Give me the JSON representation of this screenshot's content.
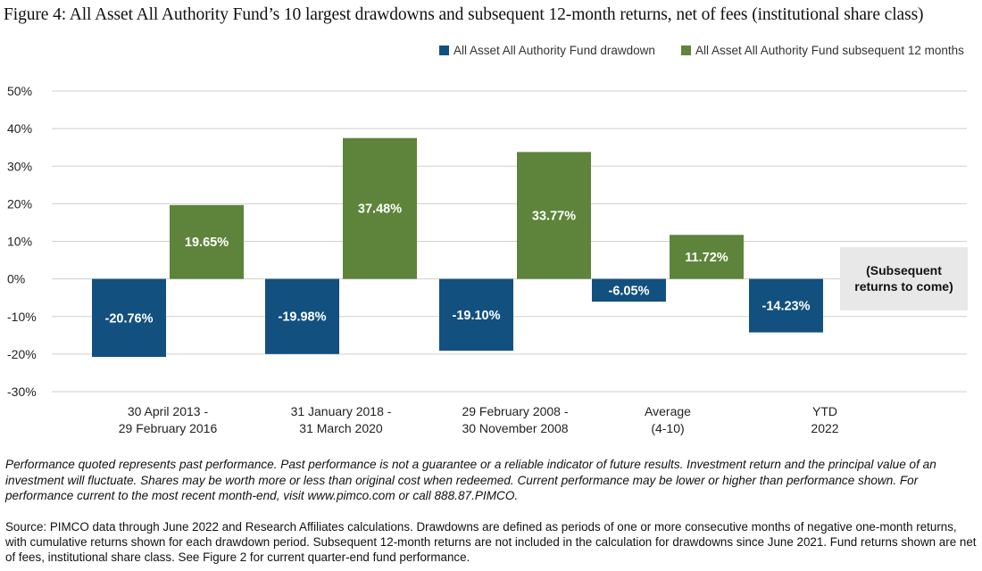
{
  "title": "Figure 4: All Asset All Authority Fund’s 10 largest drawdowns and subsequent 12-month returns, net of fees (institutional share class)",
  "colors": {
    "drawdown": "#12507f",
    "subsequent": "#5d843a",
    "grid": "#cfcfcf",
    "placeholder": "#e8e8e8"
  },
  "chart_data": {
    "type": "bar",
    "categories": [
      [
        "30 April 2013 -",
        "29 February 2016"
      ],
      [
        "31 January 2018 -",
        "31 March 2020"
      ],
      [
        "29 February 2008 -",
        "30 November 2008"
      ],
      [
        "Average",
        "(4-10)"
      ],
      [
        "YTD",
        "2022"
      ]
    ],
    "series": [
      {
        "name": "All Asset All Authority Fund drawdown",
        "values": [
          -20.76,
          -19.98,
          -19.1,
          -6.05,
          -14.23
        ],
        "labels": [
          "-20.76%",
          "-19.98%",
          "-19.10%",
          "-6.05%",
          "-14.23%"
        ]
      },
      {
        "name": "All Asset All Authority Fund subsequent 12 months",
        "values": [
          19.65,
          37.48,
          33.77,
          11.72,
          null
        ],
        "labels": [
          "19.65%",
          "37.48%",
          "33.77%",
          "11.72%",
          ""
        ]
      }
    ],
    "placeholder_label": [
      "(Subsequent",
      "returns to come)"
    ],
    "yticks": [
      "50%",
      "40%",
      "30%",
      "20%",
      "10%",
      "0%",
      "-10%",
      "-20%",
      "-30%"
    ],
    "ylim": [
      -30,
      50
    ],
    "grid": true,
    "legend_position": "top-right"
  },
  "note": "Performance quoted represents past performance. Past performance is not a guarantee or a reliable indicator of future results. Investment return and the principal value of an investment will fluctuate. Shares may be worth more or less than original cost when redeemed. Current performance may be lower or higher than performance shown. For performance current to the most recent month-end, visit www.pimco.com or call 888.87.PIMCO.",
  "source": "Source: PIMCO data through June 2022 and Research Affiliates calculations. Drawdowns are defined as periods of one or more consecutive months of negative one-month returns, with cumulative returns shown for each drawdown period. Subsequent 12-month returns are not included in the calculation for drawdowns since June 2021. Fund returns shown are net of fees, institutional share class. See Figure 2 for current quarter-end fund performance."
}
